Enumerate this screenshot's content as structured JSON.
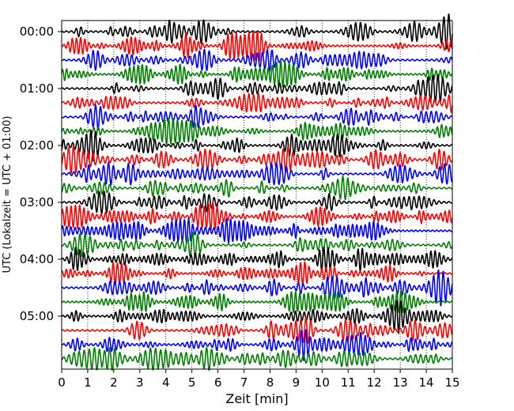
{
  "chart_data": {
    "type": "line",
    "title": "",
    "xlabel": "Zeit  [min]",
    "ylabel": "UTC (Lokalzeit = UTC + 01:00)",
    "xlim": [
      0,
      15
    ],
    "x_ticks": [
      "0",
      "1",
      "2",
      "3",
      "4",
      "5",
      "6",
      "7",
      "8",
      "9",
      "10",
      "11",
      "12",
      "13",
      "14",
      "15"
    ],
    "y_ticks": [
      "00:00",
      "01:00",
      "02:00",
      "03:00",
      "04:00",
      "05:00"
    ],
    "trace_count": 24,
    "trace_interval_min": 15,
    "color_cycle": [
      "#000000",
      "#ff0000",
      "#0000ff",
      "#007f00"
    ],
    "grid": {
      "x": true,
      "y": false,
      "style": "dotted"
    },
    "legend": "none"
  }
}
